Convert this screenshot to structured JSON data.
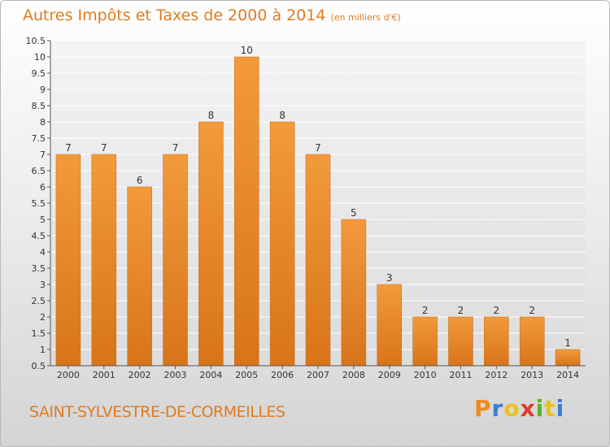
{
  "chart_data": {
    "type": "bar",
    "title": "Autres Impôts et Taxes de 2000 à 2014",
    "unit_note": "(en milliers d'€)",
    "categories": [
      "2000",
      "2001",
      "2002",
      "2003",
      "2004",
      "2005",
      "2006",
      "2007",
      "2008",
      "2009",
      "2010",
      "2011",
      "2012",
      "2013",
      "2014"
    ],
    "values": [
      7,
      7,
      6,
      7,
      8,
      10,
      8,
      7,
      5,
      3,
      2,
      2,
      2,
      2,
      1
    ],
    "data_labels": [
      "7",
      "7",
      "6",
      "7",
      "8",
      "10",
      "8",
      "7",
      "5",
      "3",
      "2",
      "2",
      "2",
      "2",
      "1"
    ],
    "ylim": [
      0.5,
      10.5
    ],
    "y_ticks": [
      0.5,
      1,
      1.5,
      2,
      2.5,
      3,
      3.5,
      4,
      4.5,
      5,
      5.5,
      6,
      6.5,
      7,
      7.5,
      8,
      8.5,
      9,
      9.5,
      10,
      10.5
    ],
    "y_tick_labels": [
      "0.5",
      "1",
      "1.5",
      "2",
      "2.5",
      "3",
      "3.5",
      "4",
      "4.5",
      "5",
      "5.5",
      "6",
      "6.5",
      "7",
      "7.5",
      "8",
      "8.5",
      "9",
      "9.5",
      "10",
      "10.5"
    ],
    "grid": true,
    "bar_color": "#f29a3c",
    "bar_color_dark": "#d8741a"
  },
  "commune": "SAINT-SYLVESTRE-DE-CORMEILLES",
  "brand": {
    "letters": [
      "P",
      "r",
      "o",
      "x",
      "i",
      "t",
      "i"
    ],
    "colors": [
      "#f08a1c",
      "#3a7fd0",
      "#e8c21a",
      "#e23a2a",
      "#5bb031",
      "#e8c21a",
      "#3a7fd0"
    ]
  },
  "title_color": "#e07b1f"
}
